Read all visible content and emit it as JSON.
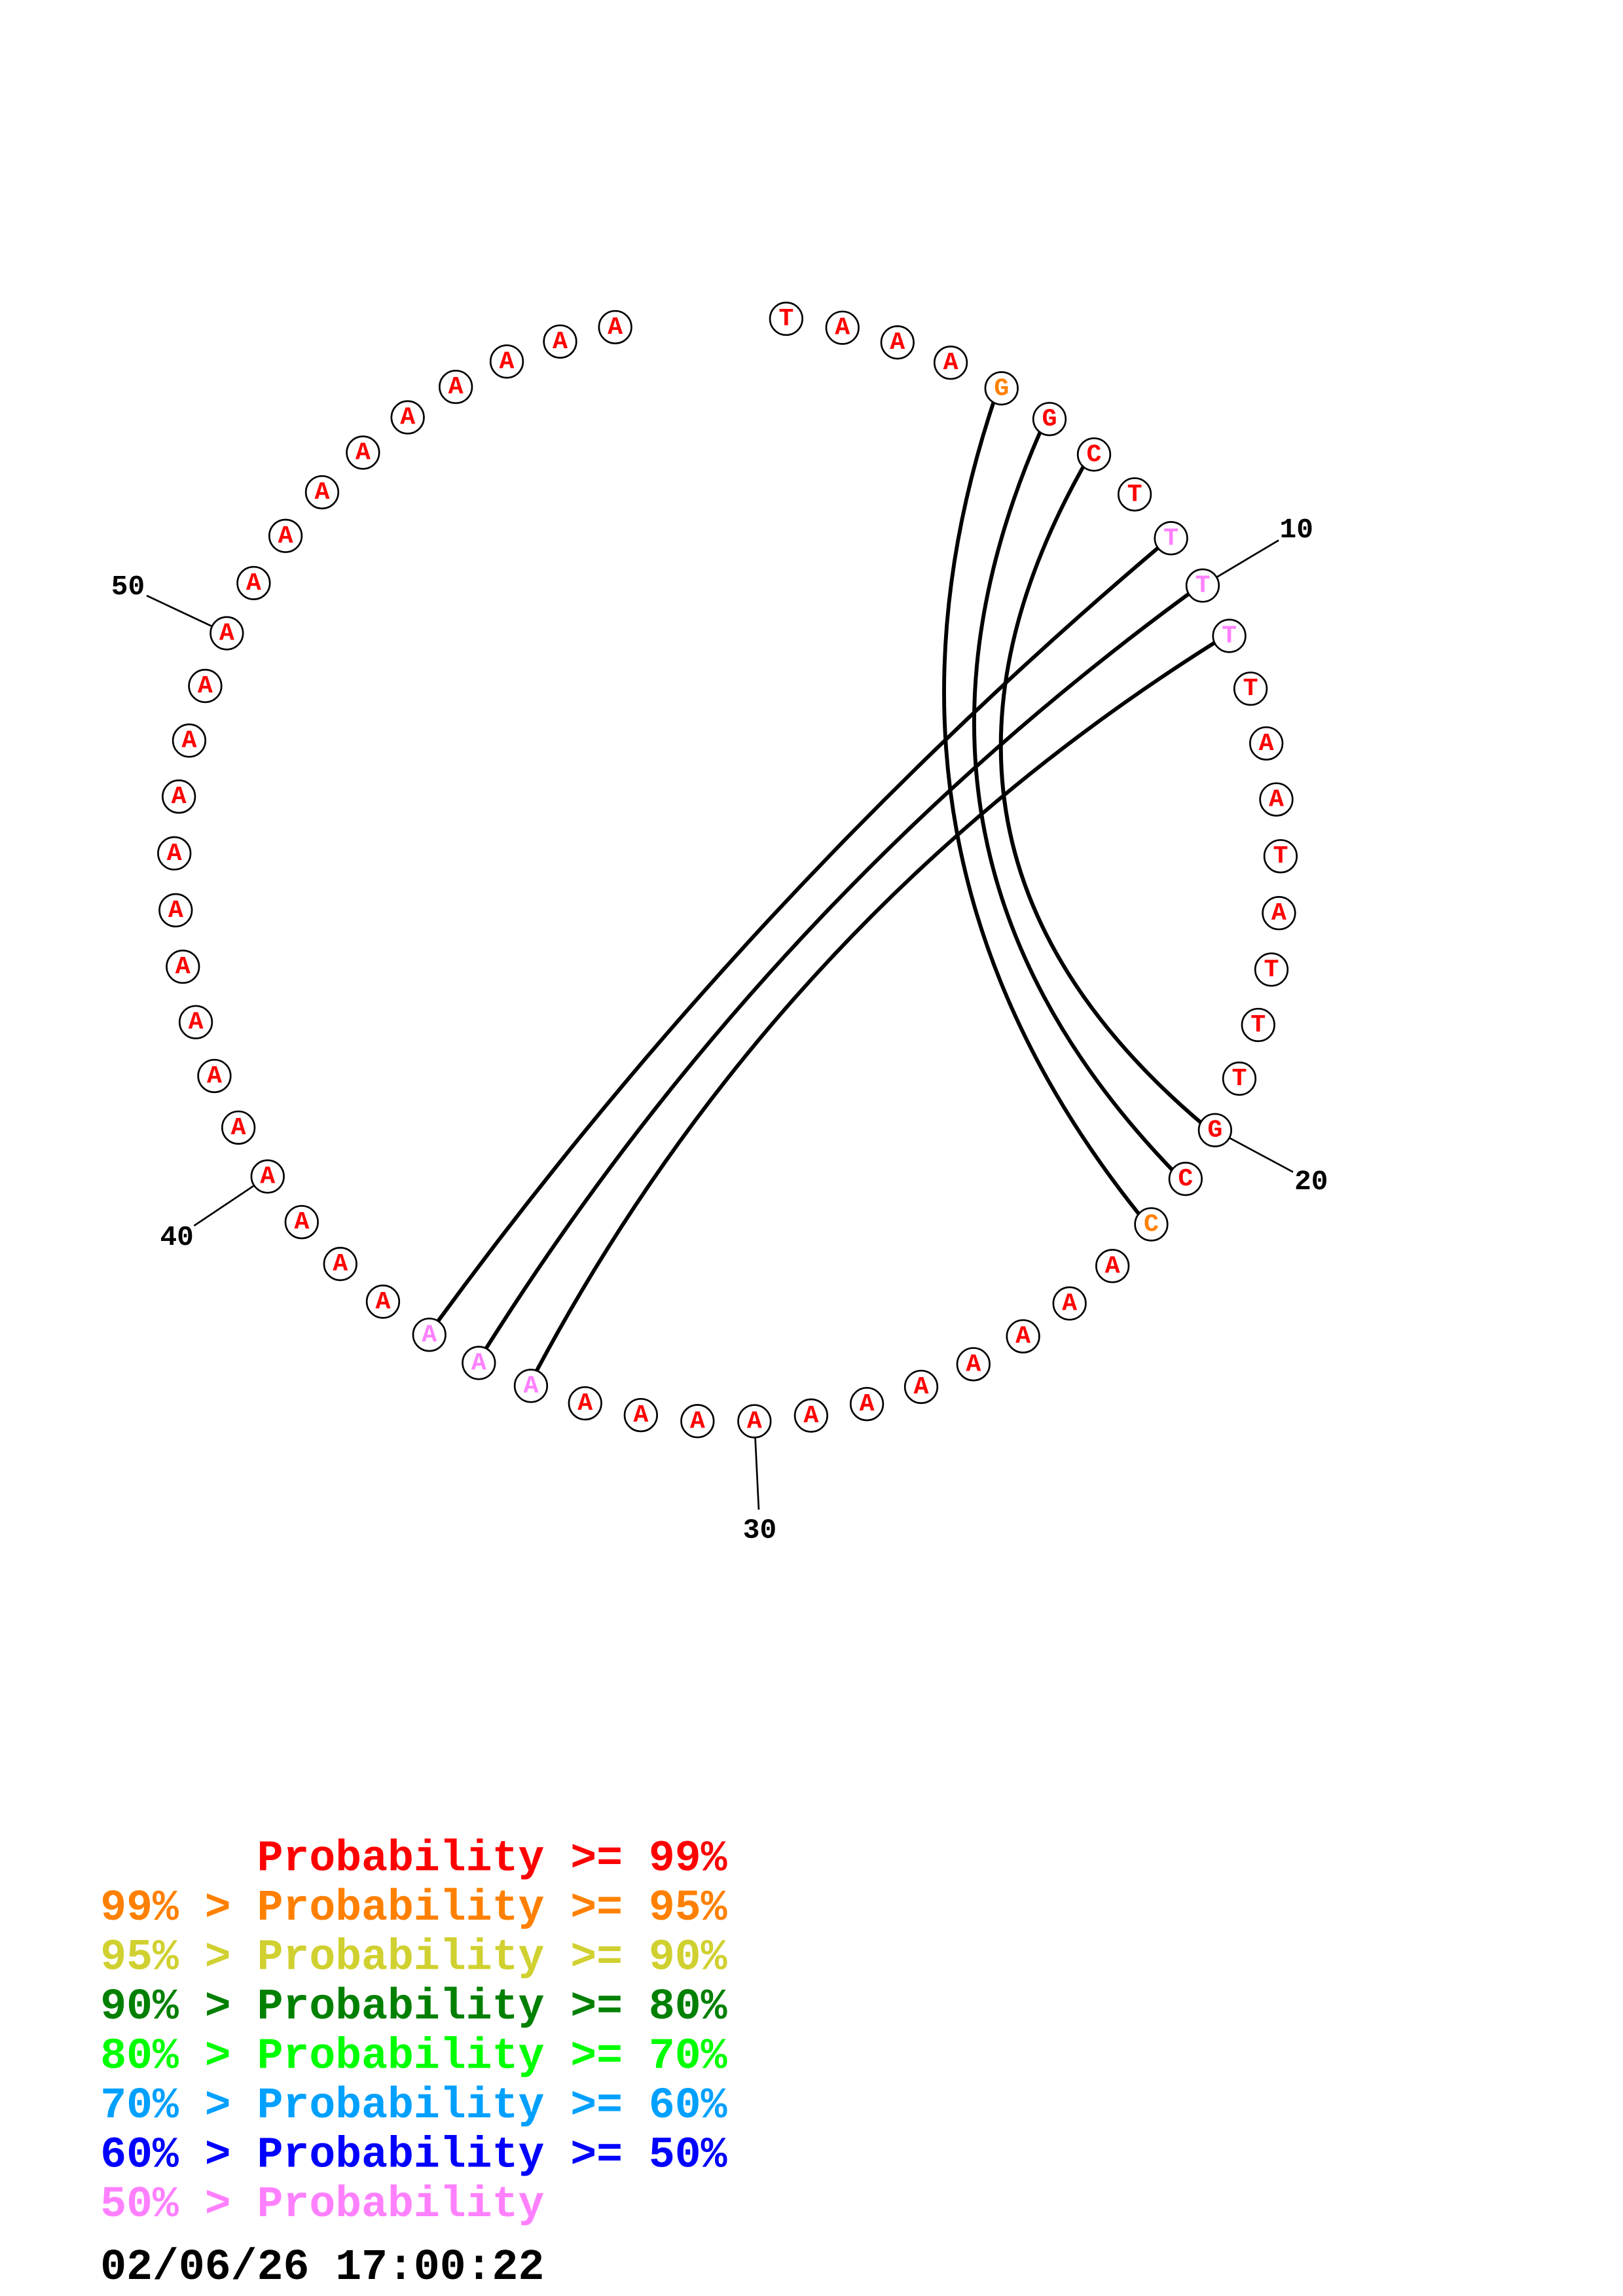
{
  "nucleotides": [
    {
      "base": "T",
      "color": "#ff0000"
    },
    {
      "base": "A",
      "color": "#ff0000"
    },
    {
      "base": "A",
      "color": "#ff0000"
    },
    {
      "base": "A",
      "color": "#ff0000"
    },
    {
      "base": "G",
      "color": "#ff8000"
    },
    {
      "base": "G",
      "color": "#ff0000"
    },
    {
      "base": "C",
      "color": "#ff0000"
    },
    {
      "base": "T",
      "color": "#ff0000"
    },
    {
      "base": "T",
      "color": "#ff80ff"
    },
    {
      "base": "T",
      "color": "#ff80ff"
    },
    {
      "base": "T",
      "color": "#ff80ff"
    },
    {
      "base": "T",
      "color": "#ff0000"
    },
    {
      "base": "A",
      "color": "#ff0000"
    },
    {
      "base": "A",
      "color": "#ff0000"
    },
    {
      "base": "T",
      "color": "#ff0000"
    },
    {
      "base": "A",
      "color": "#ff0000"
    },
    {
      "base": "T",
      "color": "#ff0000"
    },
    {
      "base": "T",
      "color": "#ff0000"
    },
    {
      "base": "T",
      "color": "#ff0000"
    },
    {
      "base": "G",
      "color": "#ff0000"
    },
    {
      "base": "C",
      "color": "#ff0000"
    },
    {
      "base": "C",
      "color": "#ff8000"
    },
    {
      "base": "A",
      "color": "#ff0000"
    },
    {
      "base": "A",
      "color": "#ff0000"
    },
    {
      "base": "A",
      "color": "#ff0000"
    },
    {
      "base": "A",
      "color": "#ff0000"
    },
    {
      "base": "A",
      "color": "#ff0000"
    },
    {
      "base": "A",
      "color": "#ff0000"
    },
    {
      "base": "A",
      "color": "#ff0000"
    },
    {
      "base": "A",
      "color": "#ff0000"
    },
    {
      "base": "A",
      "color": "#ff0000"
    },
    {
      "base": "A",
      "color": "#ff0000"
    },
    {
      "base": "A",
      "color": "#ff0000"
    },
    {
      "base": "A",
      "color": "#ff80ff"
    },
    {
      "base": "A",
      "color": "#ff80ff"
    },
    {
      "base": "A",
      "color": "#ff80ff"
    },
    {
      "base": "A",
      "color": "#ff0000"
    },
    {
      "base": "A",
      "color": "#ff0000"
    },
    {
      "base": "A",
      "color": "#ff0000"
    },
    {
      "base": "A",
      "color": "#ff0000"
    },
    {
      "base": "A",
      "color": "#ff0000"
    },
    {
      "base": "A",
      "color": "#ff0000"
    },
    {
      "base": "A",
      "color": "#ff0000"
    },
    {
      "base": "A",
      "color": "#ff0000"
    },
    {
      "base": "A",
      "color": "#ff0000"
    },
    {
      "base": "A",
      "color": "#ff0000"
    },
    {
      "base": "A",
      "color": "#ff0000"
    },
    {
      "base": "A",
      "color": "#ff0000"
    },
    {
      "base": "A",
      "color": "#ff0000"
    },
    {
      "base": "A",
      "color": "#ff0000"
    },
    {
      "base": "A",
      "color": "#ff0000"
    },
    {
      "base": "A",
      "color": "#ff0000"
    },
    {
      "base": "A",
      "color": "#ff0000"
    },
    {
      "base": "A",
      "color": "#ff0000"
    },
    {
      "base": "A",
      "color": "#ff0000"
    },
    {
      "base": "A",
      "color": "#ff0000"
    },
    {
      "base": "A",
      "color": "#ff0000"
    },
    {
      "base": "A",
      "color": "#ff0000"
    },
    {
      "base": "A",
      "color": "#ff0000"
    }
  ],
  "pairs": [
    [
      5,
      22
    ],
    [
      6,
      21
    ],
    [
      7,
      20
    ],
    [
      9,
      36
    ],
    [
      10,
      35
    ],
    [
      11,
      34
    ]
  ],
  "tick_labels": [
    10,
    20,
    30,
    40,
    50
  ],
  "legend": [
    {
      "text": "Probability >= 99%",
      "color": "#ff0000"
    },
    {
      "text": "99% > Probability >= 95%",
      "color": "#ff8000"
    },
    {
      "text": "95% > Probability >= 90%",
      "color": "#d0d030"
    },
    {
      "text": "90% > Probability >= 80%",
      "color": "#008000"
    },
    {
      "text": "80% > Probability >= 70%",
      "color": "#00ff00"
    },
    {
      "text": "70% > Probability >= 60%",
      "color": "#00a0ff"
    },
    {
      "text": "60% > Probability >= 50%",
      "color": "#0000ff"
    },
    {
      "text": "50% > Probability",
      "color": "#ff80ff"
    }
  ],
  "timestamp": "02/06/26 17:00:22"
}
